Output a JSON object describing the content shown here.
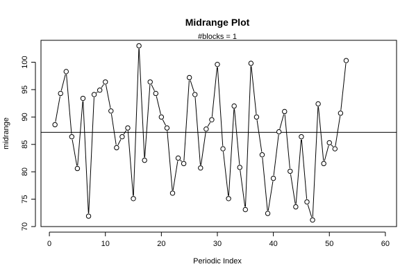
{
  "chart_data": {
    "type": "line",
    "title": "Midrange Plot",
    "subtitle": "#blocks =  1",
    "xlabel": "Periodic Index",
    "ylabel": "midrange",
    "xlim": [
      -1.5,
      62
    ],
    "ylim": [
      70,
      104
    ],
    "x_ticks": [
      0,
      10,
      20,
      30,
      40,
      50,
      60
    ],
    "y_ticks": [
      70,
      75,
      80,
      85,
      90,
      95,
      100
    ],
    "reference_line": 87.2,
    "grid": false,
    "series": [
      {
        "x": [
          1,
          2,
          3,
          4,
          5,
          6,
          7,
          8,
          9,
          10,
          11,
          12,
          13,
          14,
          15,
          16,
          17,
          18,
          19,
          20,
          21,
          22,
          23,
          24,
          25,
          26,
          27,
          28,
          29,
          30,
          31,
          32,
          33,
          34,
          35,
          36,
          37,
          38,
          39,
          40,
          41,
          42,
          43,
          44,
          45,
          46,
          47,
          48,
          49,
          50,
          51,
          52,
          53
        ],
        "values": [
          88.6,
          94.3,
          98.3,
          86.4,
          80.6,
          93.4,
          71.9,
          94.1,
          94.9,
          96.4,
          91.1,
          84.4,
          86.4,
          88.0,
          75.1,
          103.0,
          82.1,
          96.4,
          94.3,
          90.0,
          88.0,
          76.1,
          82.5,
          81.5,
          97.2,
          94.1,
          80.7,
          87.8,
          89.5,
          99.6,
          84.2,
          75.1,
          92.0,
          80.8,
          73.1,
          99.8,
          90.0,
          83.1,
          72.4,
          78.8,
          87.3,
          91.0,
          80.1,
          73.6,
          86.4,
          74.5,
          71.2,
          92.4,
          81.5,
          85.3,
          84.2,
          90.7,
          100.3
        ]
      }
    ]
  }
}
